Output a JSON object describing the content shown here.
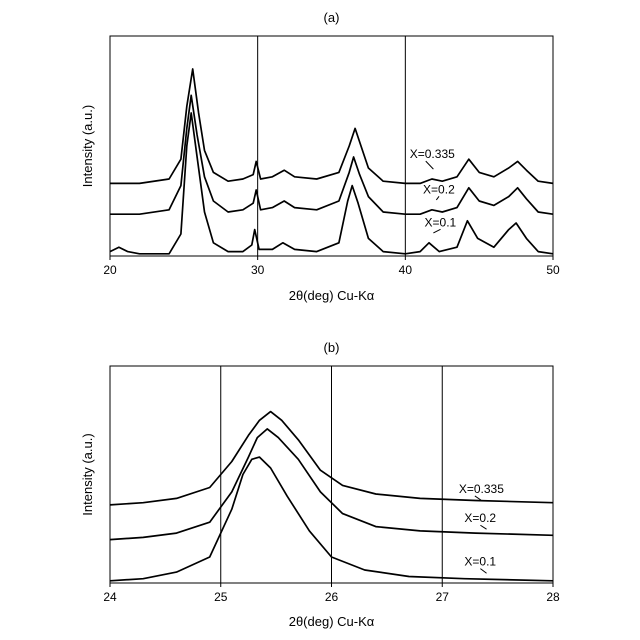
{
  "chart_data": [
    {
      "type": "line",
      "panel_label": "(a)",
      "xlabel": "2θ(deg) Cu-Kα",
      "ylabel": "Intensity (a.u.)",
      "xlim": [
        20,
        50
      ],
      "ylim": [
        0,
        100
      ],
      "x_ticks": [
        20,
        30,
        40,
        50
      ],
      "grid": "vertical lines at 30 and 40",
      "line_color": "#000000",
      "series": [
        {
          "name": "X=0.335",
          "label_at": [
            40.3,
            44.5
          ],
          "label_anchor": [
            41.9,
            39.5
          ],
          "x": [
            20,
            22,
            24,
            24.8,
            25.2,
            25.6,
            26.0,
            26.4,
            27,
            28,
            29,
            29.7,
            29.9,
            30.2,
            31,
            31.8,
            32.5,
            34,
            35.5,
            36.2,
            36.6,
            37.0,
            37.5,
            38.5,
            40,
            41,
            41.8,
            42.5,
            43.5,
            44.3,
            45.0,
            46,
            47.0,
            47.6,
            48.2,
            49,
            50
          ],
          "y": [
            33,
            33,
            35,
            44,
            68,
            85,
            65,
            48,
            38,
            34,
            35,
            37,
            43,
            35,
            36,
            39,
            36,
            35,
            38,
            50,
            58,
            50,
            40,
            34,
            33,
            33,
            35,
            34,
            36,
            44,
            38,
            36,
            40,
            43,
            39,
            34,
            33
          ]
        },
        {
          "name": "X=0.2",
          "label_at": [
            41.2,
            28.5
          ],
          "label_anchor": [
            42.1,
            25.5
          ],
          "x": [
            20,
            22,
            24,
            24.8,
            25.2,
            25.5,
            25.9,
            26.4,
            27,
            28,
            29,
            29.7,
            29.9,
            30.2,
            31,
            31.8,
            32.5,
            34,
            35.5,
            36.2,
            36.5,
            36.9,
            37.5,
            38.5,
            40,
            41,
            41.8,
            42.5,
            43.5,
            44.3,
            45.0,
            46,
            47.0,
            47.6,
            48.2,
            49,
            50
          ],
          "y": [
            19,
            19,
            21,
            32,
            58,
            73,
            55,
            36,
            25,
            20,
            21,
            24,
            30,
            21,
            22,
            25,
            22,
            21,
            25,
            38,
            45,
            37,
            27,
            20,
            19,
            19,
            21,
            20,
            22,
            31,
            25,
            23,
            27,
            31,
            26,
            20,
            19
          ]
        },
        {
          "name": "X=0.1",
          "label_at": [
            41.3,
            13.5
          ],
          "label_anchor": [
            41.9,
            10.5
          ],
          "x": [
            20,
            20.6,
            21.2,
            22,
            24,
            24.8,
            25.2,
            25.5,
            25.9,
            26.4,
            27,
            28,
            29,
            29.6,
            29.8,
            30.1,
            31,
            31.7,
            32.5,
            34,
            35.5,
            36.1,
            36.4,
            36.8,
            37.5,
            38.5,
            40,
            41,
            41.6,
            42.3,
            43.5,
            44.2,
            44.9,
            46,
            47.0,
            47.5,
            48.2,
            49,
            50
          ],
          "y": [
            2,
            4,
            2,
            1,
            1,
            10,
            50,
            65,
            45,
            20,
            6,
            2,
            2,
            5,
            12,
            3,
            3,
            6,
            3,
            2,
            6,
            25,
            32,
            24,
            8,
            2,
            1,
            2,
            6,
            2,
            4,
            16,
            8,
            4,
            12,
            15,
            8,
            2,
            1
          ]
        }
      ]
    },
    {
      "type": "line",
      "panel_label": "(b)",
      "xlabel": "2θ(deg) Cu-Kα",
      "ylabel": "Intensity (a.u.)",
      "xlim": [
        24,
        28
      ],
      "ylim": [
        0,
        100
      ],
      "x_ticks": [
        24,
        25,
        26,
        27,
        28
      ],
      "grid": "vertical lines at 25, 26 and 27",
      "line_color": "#000000",
      "series": [
        {
          "name": "X=0.335",
          "label_at": [
            27.15,
            41.5
          ],
          "label_anchor": [
            27.35,
            38.2
          ],
          "x": [
            24,
            24.3,
            24.6,
            24.9,
            25.1,
            25.25,
            25.35,
            25.45,
            25.55,
            25.7,
            25.9,
            26.1,
            26.4,
            26.8,
            27.3,
            28
          ],
          "y": [
            36,
            37,
            39,
            44,
            56,
            68,
            75,
            79,
            75,
            66,
            52,
            45,
            41,
            39,
            38,
            37
          ]
        },
        {
          "name": "X=0.2",
          "label_at": [
            27.2,
            28
          ],
          "label_anchor": [
            27.4,
            24.8
          ],
          "x": [
            24,
            24.3,
            24.6,
            24.9,
            25.1,
            25.25,
            25.33,
            25.42,
            25.52,
            25.7,
            25.9,
            26.1,
            26.4,
            26.8,
            27.3,
            28
          ],
          "y": [
            20,
            21,
            23,
            28,
            42,
            58,
            67,
            71,
            67,
            57,
            42,
            32,
            26,
            24,
            23,
            22
          ]
        },
        {
          "name": "X=0.1",
          "label_at": [
            27.2,
            8
          ],
          "label_anchor": [
            27.4,
            4.5
          ],
          "x": [
            24,
            24.3,
            24.6,
            24.9,
            25.1,
            25.2,
            25.28,
            25.35,
            25.45,
            25.6,
            25.8,
            26.0,
            26.3,
            26.7,
            27.2,
            28
          ],
          "y": [
            1,
            2,
            5,
            12,
            34,
            50,
            57,
            58,
            53,
            40,
            24,
            12,
            6,
            3,
            2,
            1
          ]
        }
      ]
    }
  ]
}
